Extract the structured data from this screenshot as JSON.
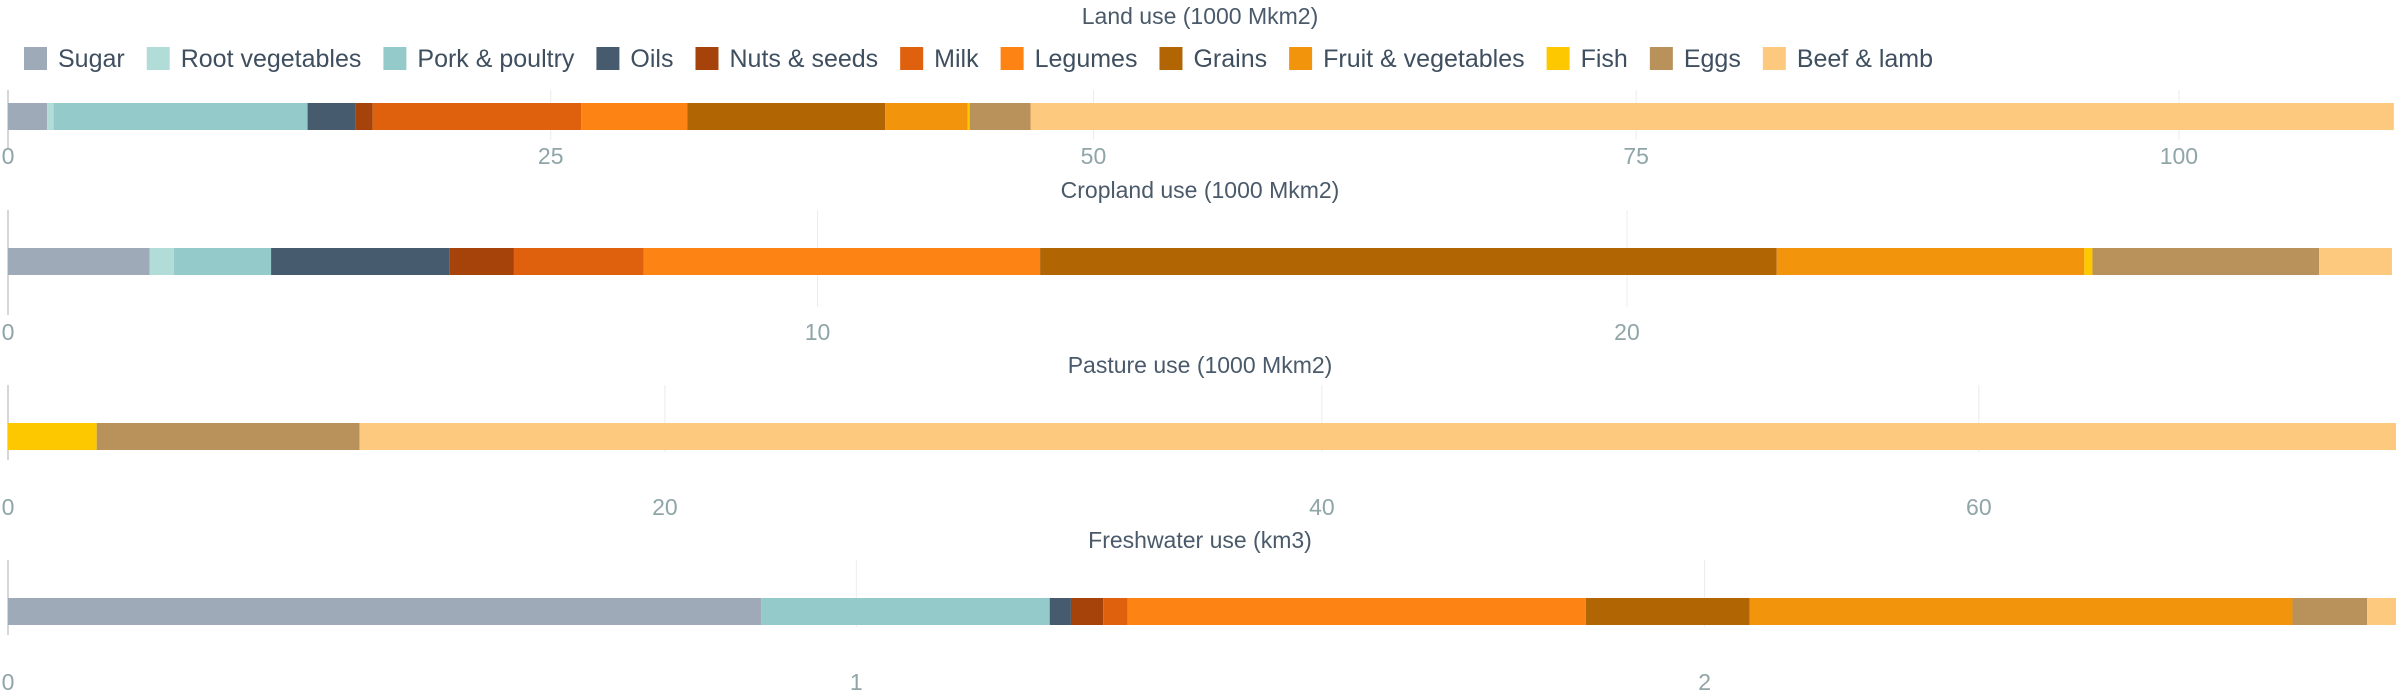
{
  "legend": {
    "placement": "top-left",
    "items": [
      {
        "name": "Sugar",
        "color": "#9eaab8"
      },
      {
        "name": "Root vegetables",
        "color": "#b2dcd8"
      },
      {
        "name": "Pork & poultry",
        "color": "#94cac9"
      },
      {
        "name": "Oils",
        "color": "#475b6e"
      },
      {
        "name": "Nuts & seeds",
        "color": "#a5430a"
      },
      {
        "name": "Milk",
        "color": "#e0610d"
      },
      {
        "name": "Legumes",
        "color": "#fd8414"
      },
      {
        "name": "Grains",
        "color": "#b26603"
      },
      {
        "name": "Fruit & vegetables",
        "color": "#f3940d"
      },
      {
        "name": "Fish",
        "color": "#fdc800"
      },
      {
        "name": "Eggs",
        "color": "#b8915b"
      },
      {
        "name": "Beef & lamb",
        "color": "#fdc97e"
      }
    ]
  },
  "chart_data": [
    {
      "type": "bar",
      "orientation": "horizontal",
      "stacked": true,
      "title": "Land use (1000 Mkm2)",
      "xlim": [
        0,
        110
      ],
      "ticks": [
        0,
        25,
        50,
        75,
        100
      ],
      "grid": true,
      "series": [
        {
          "name": "Sugar",
          "values": [
            1.8
          ]
        },
        {
          "name": "Root vegetables",
          "values": [
            0.3
          ]
        },
        {
          "name": "Pork & poultry",
          "values": [
            11.7
          ]
        },
        {
          "name": "Oils",
          "values": [
            2.2
          ]
        },
        {
          "name": "Nuts & seeds",
          "values": [
            0.8
          ]
        },
        {
          "name": "Milk",
          "values": [
            9.6
          ]
        },
        {
          "name": "Legumes",
          "values": [
            4.9
          ]
        },
        {
          "name": "Grains",
          "values": [
            9.1
          ]
        },
        {
          "name": "Fruit & vegetables",
          "values": [
            3.8
          ]
        },
        {
          "name": "Fish",
          "values": [
            0.1
          ]
        },
        {
          "name": "Eggs",
          "values": [
            2.8
          ]
        },
        {
          "name": "Beef & lamb",
          "values": [
            62.8
          ]
        }
      ]
    },
    {
      "type": "bar",
      "orientation": "horizontal",
      "stacked": true,
      "title": "Cropland use (1000 Mkm2)",
      "xlim": [
        0,
        29.5
      ],
      "ticks": [
        0,
        10,
        20
      ],
      "grid": true,
      "series": [
        {
          "name": "Sugar",
          "values": [
            1.75
          ]
        },
        {
          "name": "Root vegetables",
          "values": [
            0.3
          ]
        },
        {
          "name": "Pork & poultry",
          "values": [
            1.2
          ]
        },
        {
          "name": "Oils",
          "values": [
            2.2
          ]
        },
        {
          "name": "Nuts & seeds",
          "values": [
            0.8
          ]
        },
        {
          "name": "Milk",
          "values": [
            1.6
          ]
        },
        {
          "name": "Legumes",
          "values": [
            4.9
          ]
        },
        {
          "name": "Grains",
          "values": [
            9.1
          ]
        },
        {
          "name": "Fruit & vegetables",
          "values": [
            3.8
          ]
        },
        {
          "name": "Fish",
          "values": [
            0.1
          ]
        },
        {
          "name": "Eggs",
          "values": [
            2.8
          ]
        },
        {
          "name": "Beef & lamb",
          "values": [
            0.9
          ]
        }
      ]
    },
    {
      "type": "bar",
      "orientation": "horizontal",
      "stacked": true,
      "title": "Pasture use (1000 Mkm2)",
      "xlim": [
        0,
        72.7
      ],
      "ticks": [
        0,
        20,
        40,
        60
      ],
      "grid": true,
      "series": [
        {
          "name": "Fish",
          "values": [
            2.7
          ]
        },
        {
          "name": "Eggs",
          "values": [
            8.0
          ]
        },
        {
          "name": "Beef & lamb",
          "values": [
            62.0
          ]
        }
      ]
    },
    {
      "type": "bar",
      "orientation": "horizontal",
      "stacked": true,
      "title": "Freshwater use (km3)",
      "xlim": [
        0,
        2.815
      ],
      "ticks": [
        0,
        1,
        2
      ],
      "grid": true,
      "series": [
        {
          "name": "Sugar",
          "values": [
            0.888
          ]
        },
        {
          "name": "Pork & poultry",
          "values": [
            0.34
          ]
        },
        {
          "name": "Oils",
          "values": [
            0.025
          ]
        },
        {
          "name": "Nuts & seeds",
          "values": [
            0.038
          ]
        },
        {
          "name": "Milk",
          "values": [
            0.029
          ]
        },
        {
          "name": "Legumes",
          "values": [
            0.54
          ]
        },
        {
          "name": "Grains",
          "values": [
            0.193
          ]
        },
        {
          "name": "Fruit & vegetables",
          "values": [
            0.64
          ]
        },
        {
          "name": "Eggs",
          "values": [
            0.088
          ]
        },
        {
          "name": "Beef & lamb",
          "values": [
            0.034
          ]
        }
      ]
    }
  ]
}
